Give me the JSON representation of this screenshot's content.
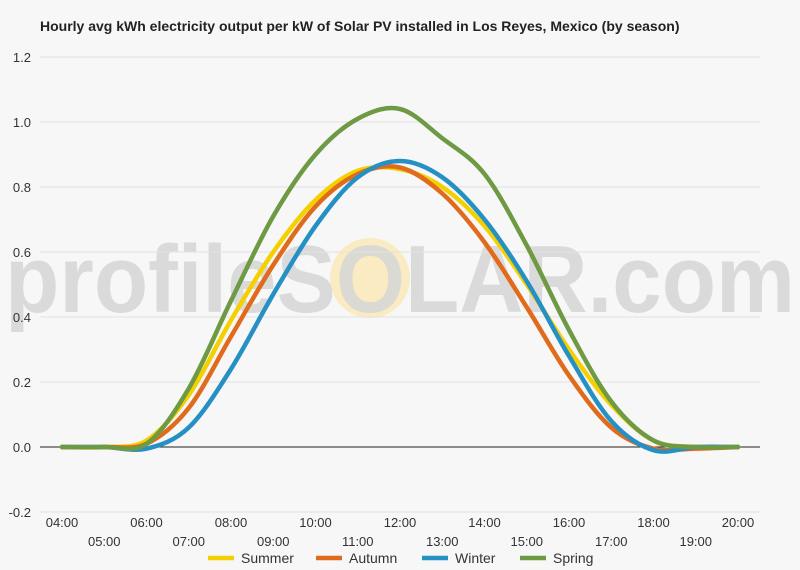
{
  "chart_data": {
    "type": "line",
    "title": "Hourly avg kWh electricity output per kW of Solar PV installed in Los Reyes, Mexico (by season)",
    "xlabel": "",
    "ylabel": "",
    "ylim": [
      -0.2,
      1.2
    ],
    "y_ticks": [
      "-0.2",
      "0.0",
      "0.2",
      "0.4",
      "0.6",
      "0.8",
      "1.0",
      "1.2"
    ],
    "x_ticks": [
      "04:00",
      "05:00",
      "06:00",
      "07:00",
      "08:00",
      "09:00",
      "10:00",
      "11:00",
      "12:00",
      "13:00",
      "14:00",
      "15:00",
      "16:00",
      "17:00",
      "18:00",
      "19:00",
      "20:00"
    ],
    "grid": true,
    "legend_position": "bottom",
    "watermark": "profileSOLAR.com",
    "series": [
      {
        "name": "Summer",
        "color": "#f4d000",
        "values": [
          0.0,
          0.0,
          0.02,
          0.16,
          0.39,
          0.6,
          0.76,
          0.85,
          0.855,
          0.8,
          0.68,
          0.5,
          0.3,
          0.13,
          0.02,
          0.0,
          0.0
        ]
      },
      {
        "name": "Autumn",
        "color": "#e06b1c",
        "values": [
          0.0,
          0.0,
          0.01,
          0.12,
          0.34,
          0.56,
          0.74,
          0.84,
          0.86,
          0.78,
          0.63,
          0.43,
          0.22,
          0.06,
          -0.005,
          -0.005,
          0.0
        ]
      },
      {
        "name": "Winter",
        "color": "#2590c4",
        "values": [
          0.0,
          0.0,
          -0.005,
          0.06,
          0.24,
          0.47,
          0.68,
          0.83,
          0.88,
          0.83,
          0.7,
          0.51,
          0.28,
          0.08,
          -0.01,
          0.0,
          0.0
        ]
      },
      {
        "name": "Spring",
        "color": "#6e9a44",
        "values": [
          0.0,
          0.0,
          0.01,
          0.18,
          0.45,
          0.71,
          0.9,
          1.01,
          1.04,
          0.95,
          0.84,
          0.62,
          0.36,
          0.14,
          0.02,
          0.0,
          0.0
        ]
      }
    ]
  }
}
